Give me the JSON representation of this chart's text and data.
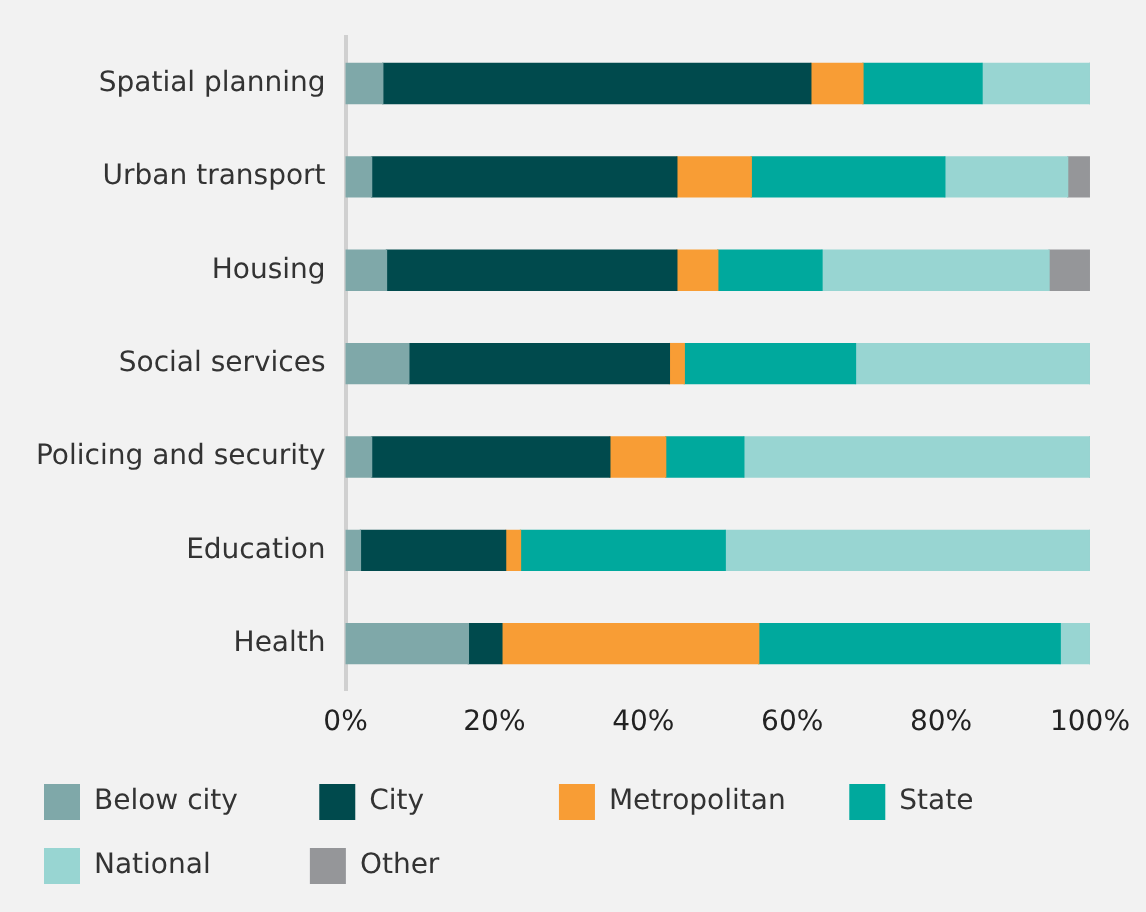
{
  "chart_data": {
    "type": "bar",
    "orientation": "horizontal",
    "stacked": true,
    "grid": false,
    "legend": "bottom",
    "categories": [
      "Spatial planning",
      "Urban transport",
      "Housing",
      "Social services",
      "Policing and security",
      "Education",
      "Health"
    ],
    "xlim": [
      0,
      100
    ],
    "xticks": [
      {
        "value": 0,
        "label": "0%"
      },
      {
        "value": 20,
        "label": "20%"
      },
      {
        "value": 40,
        "label": "40%"
      },
      {
        "value": 60,
        "label": "60%"
      },
      {
        "value": 80,
        "label": "80%"
      },
      {
        "value": 100,
        "label": "100%"
      }
    ],
    "series": [
      {
        "name": "Below city",
        "color": "#7fa8a9",
        "values": [
          5,
          3.5,
          5.5,
          8.5,
          3.5,
          2,
          16.5
        ]
      },
      {
        "name": "City",
        "color": "#004a4d",
        "values": [
          57.5,
          41,
          39,
          35,
          32,
          19.5,
          4.5
        ]
      },
      {
        "name": "Metropolitan",
        "color": "#f89d35",
        "values": [
          7,
          10,
          5.5,
          2,
          7.5,
          2,
          34.5
        ]
      },
      {
        "name": "State",
        "color": "#00a99d",
        "values": [
          16,
          26,
          14,
          23,
          10.5,
          27.5,
          40.5
        ]
      },
      {
        "name": "National",
        "color": "#98d5d2",
        "values": [
          14.5,
          16.5,
          30.5,
          31.5,
          46.5,
          49,
          4
        ]
      },
      {
        "name": "Other",
        "color": "#959699",
        "values": [
          0,
          3,
          5.5,
          0,
          0,
          0,
          0
        ]
      }
    ]
  }
}
